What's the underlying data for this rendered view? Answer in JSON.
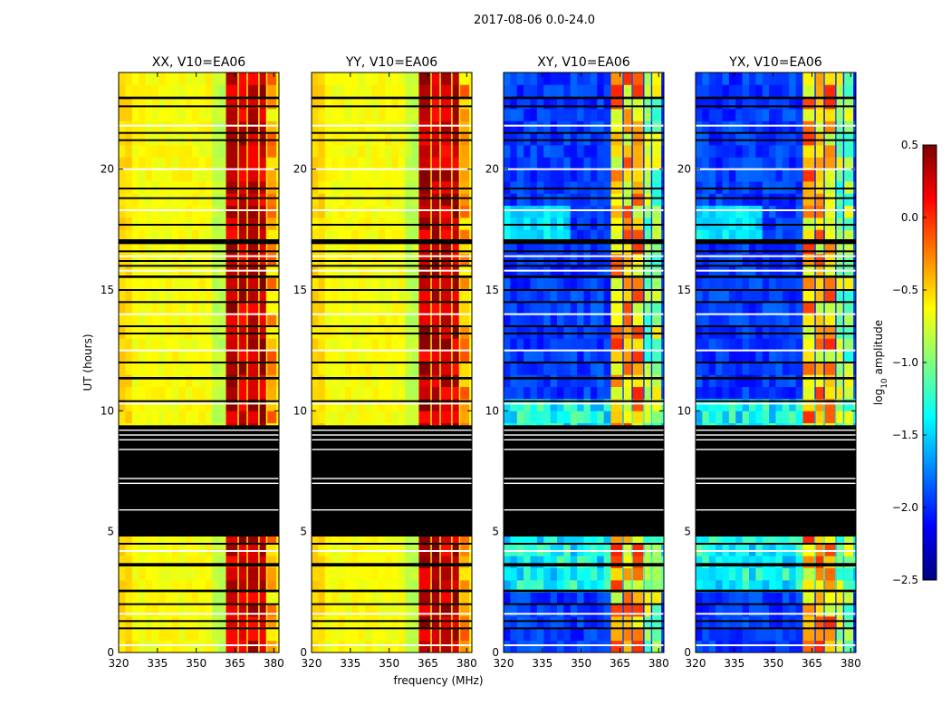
{
  "figure_title": "2017-08-06 0.0-24.0",
  "colors": {
    "jet": [
      "#00007f",
      "#0000ff",
      "#007fff",
      "#00ffff",
      "#7fff7f",
      "#ffff00",
      "#ff7f00",
      "#ff0000",
      "#7f0000"
    ],
    "black_band": "#000000",
    "white_line": "#ffffff"
  },
  "chart_data": {
    "type": "heatmap",
    "panels": [
      {
        "title": "XX, V10=EA06",
        "pol": "parallel"
      },
      {
        "title": "YY, V10=EA06",
        "pol": "parallel"
      },
      {
        "title": "XY, V10=EA06",
        "pol": "cross"
      },
      {
        "title": "YX, V10=EA06",
        "pol": "cross"
      }
    ],
    "xlabel": "frequency (MHz)",
    "ylabel": "UT (hours)",
    "xlim": [
      320,
      382
    ],
    "ylim": [
      0,
      24
    ],
    "xticks": [
      320,
      335,
      350,
      365,
      380
    ],
    "xtick_labels": [
      "320",
      "335",
      "350",
      "365",
      "380"
    ],
    "yticks": [
      0,
      5,
      10,
      15,
      20
    ],
    "ytick_labels": [
      "0",
      "5",
      "10",
      "15",
      "20"
    ],
    "rfi_band_mhz": [
      361,
      381
    ],
    "rfi_bright_columns_mhz": [
      [
        361.5,
        366
      ],
      [
        366.5,
        369.5
      ],
      [
        370,
        374
      ],
      [
        374.5,
        377
      ],
      [
        377.5,
        381
      ]
    ],
    "flagged_ut_bands": [
      [
        9.4,
        4.8
      ],
      [
        17.1,
        16.9
      ],
      [
        11.4,
        11.3
      ],
      [
        3.7,
        3.6
      ],
      [
        2.6,
        2.5
      ],
      [
        15.6,
        15.5
      ],
      [
        23.0,
        22.9
      ]
    ],
    "flagged_ut_lines": [
      0.3,
      1.0,
      1.3,
      1.6,
      2.0,
      3.6,
      4.2,
      4.5,
      5.9,
      7.0,
      7.2,
      8.4,
      8.8,
      9.0,
      9.2,
      10.3,
      10.4,
      12.0,
      12.5,
      13.2,
      13.5,
      14.0,
      14.5,
      15.0,
      15.8,
      16.0,
      16.2,
      16.4,
      16.6,
      17.7,
      18.3,
      18.8,
      19.2,
      20.0,
      21.2,
      21.5,
      21.8,
      22.6
    ],
    "colorbar": {
      "label": "log₁₀ amplitude",
      "label_main": "log",
      "label_sub": "10",
      "label_rest": " amplitude",
      "range": [
        -2.5,
        0.5
      ],
      "ticks": [
        0.5,
        0.0,
        -0.5,
        -1.0,
        -1.5,
        -2.0,
        -2.5
      ],
      "tick_labels": [
        "0.5",
        "0.0",
        "−0.5",
        "−1.0",
        "−1.5",
        "−2.0",
        "−2.5"
      ]
    }
  }
}
